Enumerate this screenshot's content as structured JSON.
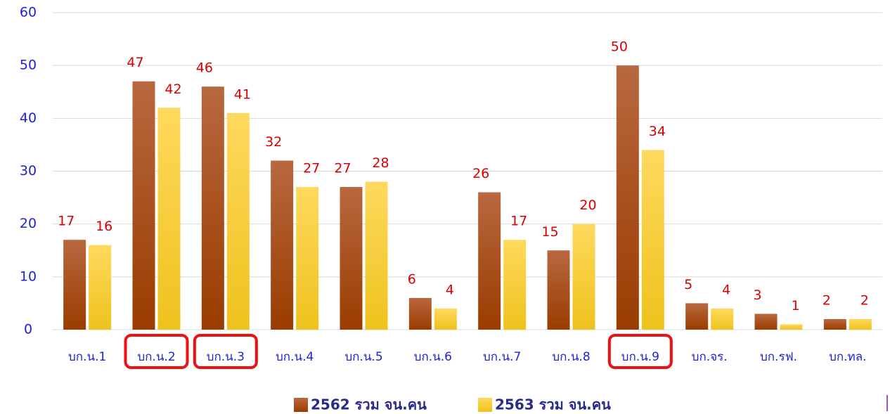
{
  "chart_data": {
    "type": "bar",
    "categories": [
      "บก.น.1",
      "บก.น.2",
      "บก.น.3",
      "บก.น.4",
      "บก.น.5",
      "บก.น.6",
      "บก.น.7",
      "บก.น.8",
      "บก.น.9",
      "บก.จร.",
      "บก.รฟ.",
      "บก.ทล."
    ],
    "series": [
      {
        "name": "2562 รวม จน.คน",
        "color": "#a04a14",
        "values": [
          17,
          47,
          46,
          32,
          27,
          6,
          26,
          15,
          50,
          5,
          3,
          2
        ]
      },
      {
        "name": "2563 รวม จน.คน",
        "color": "#f7cf3a",
        "values": [
          16,
          42,
          41,
          27,
          28,
          4,
          17,
          20,
          34,
          4,
          1,
          2
        ]
      }
    ],
    "ylim": [
      0,
      60
    ],
    "yticks": [
      0,
      10,
      20,
      30,
      40,
      50,
      60
    ],
    "grid": true,
    "legend": "bottom",
    "highlighted_categories": [
      1,
      2,
      8
    ]
  }
}
